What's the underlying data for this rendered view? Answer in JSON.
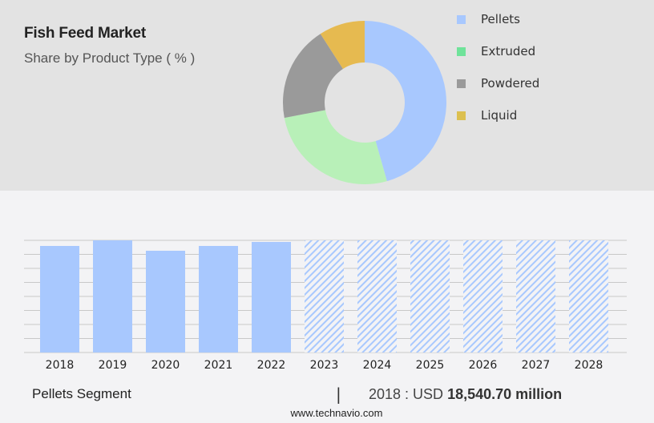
{
  "header": {
    "title": "Fish Feed Market",
    "subtitle": "Share by Product Type ( % )"
  },
  "chart_data": [
    {
      "type": "pie",
      "variant": "donut",
      "slices": [
        {
          "name": "Pellets",
          "value": 45.6,
          "color": "#a8c8fe",
          "legend_color": "#a8c8fe"
        },
        {
          "name": "Extruded",
          "value": 26.4,
          "color": "#b8f0b8",
          "legend_color": "#6fe39a"
        },
        {
          "name": "Powdered",
          "value": 18.9,
          "color": "#9a9a9a",
          "legend_color": "#9a9a9a"
        },
        {
          "name": "Liquid",
          "value": 9.1,
          "color": "#e6ba50",
          "legend_color": "#dcc050"
        }
      ],
      "legend_placement": "right"
    },
    {
      "type": "bar",
      "categories": [
        "2018",
        "2019",
        "2020",
        "2021",
        "2022",
        "2023",
        "2024",
        "2025",
        "2026",
        "2027",
        "2028"
      ],
      "values": [
        18540.7,
        19515,
        17704,
        18541,
        19237,
        null,
        null,
        null,
        null,
        null,
        null
      ],
      "forecast": [
        false,
        false,
        false,
        false,
        false,
        true,
        true,
        true,
        true,
        true,
        true
      ],
      "ylim": [
        0,
        19515
      ],
      "grid": true,
      "bar_color": "#a8c8fe",
      "unit": "USD million"
    }
  ],
  "footer": {
    "segment": "Pellets Segment",
    "separator": "|",
    "year_label": "2018 : USD",
    "value": "18,540.70 million",
    "source": "www.technavio.com"
  }
}
